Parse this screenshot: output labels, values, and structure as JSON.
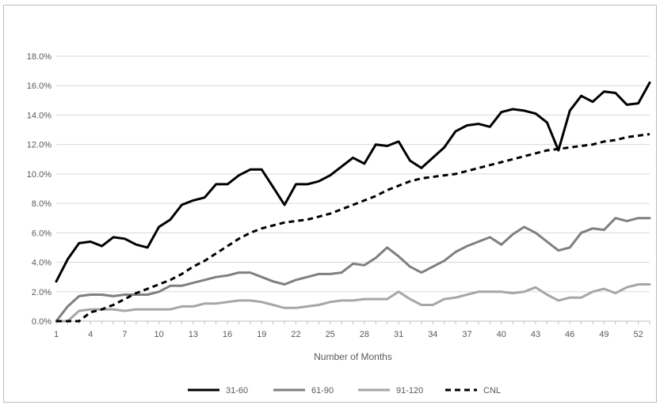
{
  "chart_data": {
    "type": "line",
    "title": "",
    "xlabel": "Number of Months",
    "ylabel": "",
    "x": [
      1,
      2,
      3,
      4,
      5,
      6,
      7,
      8,
      9,
      10,
      11,
      12,
      13,
      14,
      15,
      16,
      17,
      18,
      19,
      20,
      21,
      22,
      23,
      24,
      25,
      26,
      27,
      28,
      29,
      30,
      31,
      32,
      33,
      34,
      35,
      36,
      37,
      38,
      39,
      40,
      41,
      42,
      43,
      44,
      45,
      46,
      47,
      48,
      49,
      50,
      51,
      52,
      53
    ],
    "x_tick_labels": [
      "1",
      "4",
      "7",
      "10",
      "13",
      "16",
      "19",
      "22",
      "25",
      "28",
      "31",
      "34",
      "37",
      "40",
      "43",
      "46",
      "49",
      "52"
    ],
    "xlim": [
      1,
      53
    ],
    "ylim": [
      0,
      18
    ],
    "y_ticks": [
      0,
      2,
      4,
      6,
      8,
      10,
      12,
      14,
      16,
      18
    ],
    "y_tick_labels": [
      "0.0%",
      "2.0%",
      "4.0%",
      "6.0%",
      "8.0%",
      "10.0%",
      "12.0%",
      "14.0%",
      "16.0%",
      "18.0%"
    ],
    "grid": "horizontal",
    "legend_position": "bottom",
    "series": [
      {
        "name": "31-60",
        "color": "#000000",
        "style": "solid",
        "values": [
          2.7,
          4.2,
          5.3,
          5.4,
          5.1,
          5.7,
          5.6,
          5.2,
          5.0,
          6.4,
          6.9,
          7.9,
          8.2,
          8.4,
          9.3,
          9.3,
          9.9,
          10.3,
          10.3,
          9.1,
          7.9,
          9.3,
          9.3,
          9.5,
          9.9,
          10.5,
          11.1,
          10.7,
          12.0,
          11.9,
          12.2,
          10.9,
          10.4,
          11.1,
          11.8,
          12.9,
          13.3,
          13.4,
          13.2,
          14.2,
          14.4,
          14.3,
          14.1,
          13.5,
          11.6,
          14.3,
          15.3,
          14.9,
          15.6,
          15.5,
          14.7,
          14.8,
          16.2
        ]
      },
      {
        "name": "61-90",
        "color": "#7f7f7f",
        "style": "solid",
        "values": [
          0.0,
          1.0,
          1.7,
          1.8,
          1.8,
          1.7,
          1.8,
          1.8,
          1.8,
          2.0,
          2.4,
          2.4,
          2.6,
          2.8,
          3.0,
          3.1,
          3.3,
          3.3,
          3.0,
          2.7,
          2.5,
          2.8,
          3.0,
          3.2,
          3.2,
          3.3,
          3.9,
          3.8,
          4.3,
          5.0,
          4.4,
          3.7,
          3.3,
          3.7,
          4.1,
          4.7,
          5.1,
          5.4,
          5.7,
          5.2,
          5.9,
          6.4,
          6.0,
          5.4,
          4.8,
          5.0,
          6.0,
          6.3,
          6.2,
          7.0,
          6.8,
          7.0,
          7.0
        ]
      },
      {
        "name": "91-120",
        "color": "#a6a6a6",
        "style": "solid",
        "values": [
          0.0,
          0.0,
          0.7,
          0.8,
          0.8,
          0.8,
          0.7,
          0.8,
          0.8,
          0.8,
          0.8,
          1.0,
          1.0,
          1.2,
          1.2,
          1.3,
          1.4,
          1.4,
          1.3,
          1.1,
          0.9,
          0.9,
          1.0,
          1.1,
          1.3,
          1.4,
          1.4,
          1.5,
          1.5,
          1.5,
          2.0,
          1.5,
          1.1,
          1.1,
          1.5,
          1.6,
          1.8,
          2.0,
          2.0,
          2.0,
          1.9,
          2.0,
          2.3,
          1.8,
          1.4,
          1.6,
          1.6,
          2.0,
          2.2,
          1.9,
          2.3,
          2.5,
          2.5
        ]
      },
      {
        "name": "CNL",
        "color": "#000000",
        "style": "dashed",
        "values": [
          0.0,
          0.0,
          0.0,
          0.6,
          0.8,
          1.1,
          1.5,
          1.9,
          2.2,
          2.5,
          2.8,
          3.2,
          3.7,
          4.1,
          4.6,
          5.1,
          5.6,
          6.0,
          6.3,
          6.5,
          6.7,
          6.8,
          6.9,
          7.1,
          7.3,
          7.6,
          7.9,
          8.2,
          8.5,
          8.9,
          9.2,
          9.5,
          9.7,
          9.8,
          9.9,
          10.0,
          10.2,
          10.4,
          10.6,
          10.8,
          11.0,
          11.2,
          11.4,
          11.6,
          11.7,
          11.8,
          11.9,
          12.0,
          12.2,
          12.3,
          12.5,
          12.6,
          12.7
        ]
      }
    ]
  }
}
